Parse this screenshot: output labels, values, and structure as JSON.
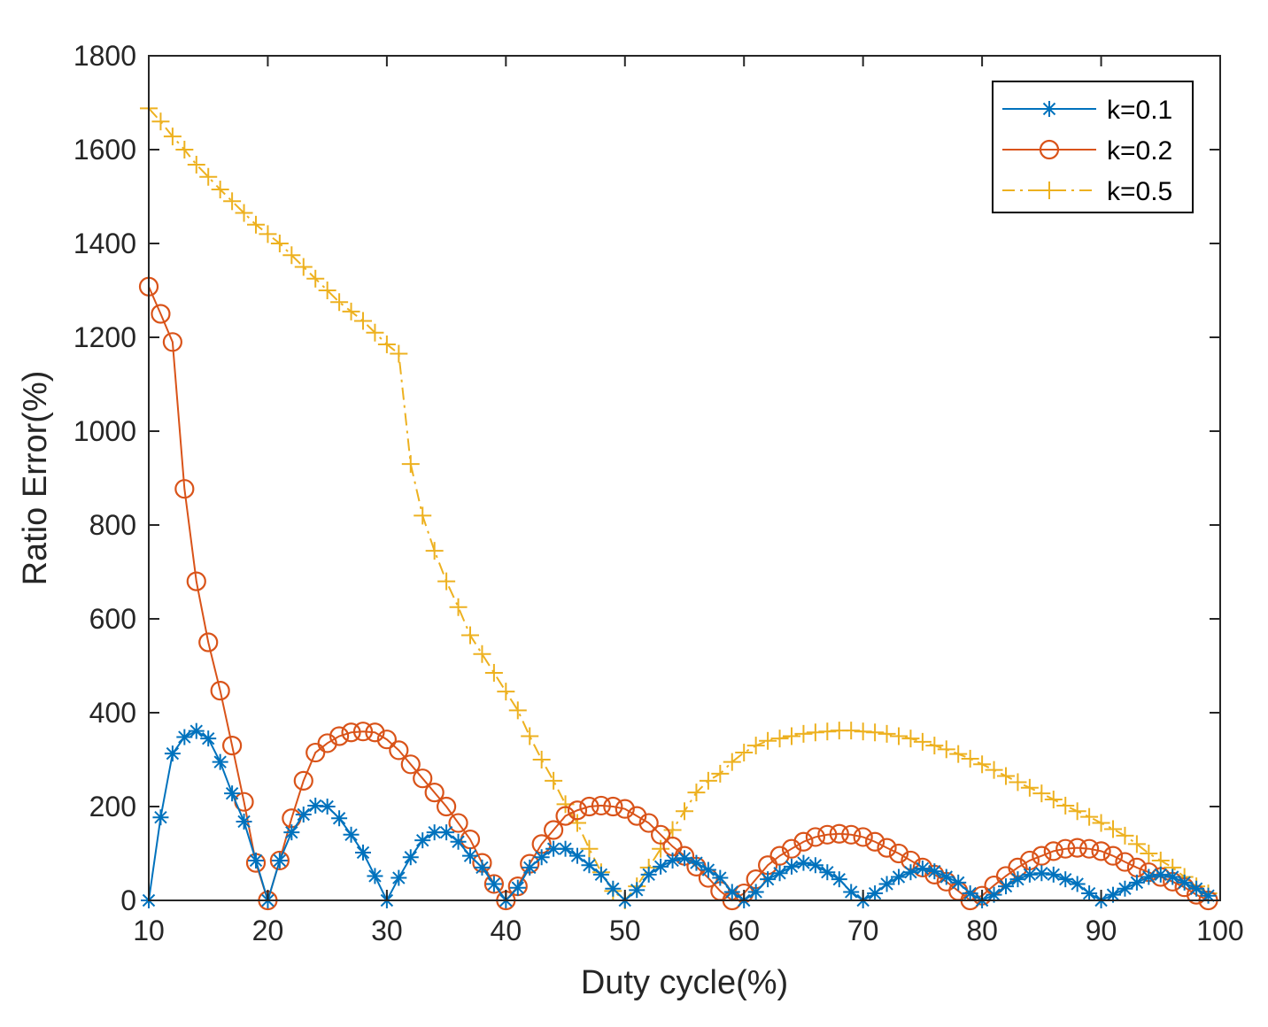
{
  "chart_data": {
    "type": "line",
    "title": "",
    "xlabel": "Duty cycle(%)",
    "ylabel": "Ratio Error(%)",
    "xlim": [
      10,
      100
    ],
    "ylim": [
      0,
      1800
    ],
    "xticks": [
      "10",
      "20",
      "30",
      "40",
      "50",
      "60",
      "70",
      "80",
      "90",
      "100"
    ],
    "yticks": [
      "0",
      "200",
      "400",
      "600",
      "800",
      "1000",
      "1200",
      "1400",
      "1600",
      "1800"
    ],
    "grid": false,
    "legend_position": "top-right",
    "x": [
      10,
      11,
      12,
      13,
      14,
      15,
      16,
      17,
      18,
      19,
      20,
      21,
      22,
      23,
      24,
      25,
      26,
      27,
      28,
      29,
      30,
      31,
      32,
      33,
      34,
      35,
      36,
      37,
      38,
      39,
      40,
      41,
      42,
      43,
      44,
      45,
      46,
      47,
      48,
      49,
      50,
      51,
      52,
      53,
      54,
      55,
      56,
      57,
      58,
      59,
      60,
      61,
      62,
      63,
      64,
      65,
      66,
      67,
      68,
      69,
      70,
      71,
      72,
      73,
      74,
      75,
      76,
      77,
      78,
      79,
      80,
      81,
      82,
      83,
      84,
      85,
      86,
      87,
      88,
      89,
      90,
      91,
      92,
      93,
      94,
      95,
      96,
      97,
      98,
      99
    ],
    "series": [
      {
        "name": "k=0.1",
        "color": "#0072BD",
        "marker": "asterisk",
        "line": "solid",
        "values": [
          0,
          177,
          313,
          348,
          361,
          345,
          295,
          228,
          168,
          85,
          0,
          85,
          145,
          183,
          202,
          200,
          175,
          140,
          102,
          52,
          0,
          48,
          92,
          128,
          145,
          145,
          125,
          95,
          70,
          35,
          0,
          27,
          70,
          92,
          110,
          110,
          95,
          75,
          55,
          25,
          0,
          22,
          55,
          72,
          85,
          90,
          80,
          65,
          48,
          18,
          0,
          18,
          45,
          58,
          72,
          80,
          75,
          60,
          45,
          18,
          0,
          15,
          35,
          50,
          60,
          68,
          62,
          50,
          38,
          15,
          0,
          12,
          30,
          45,
          55,
          58,
          55,
          45,
          35,
          15,
          0,
          12,
          25,
          38,
          50,
          55,
          50,
          38,
          25,
          10
        ]
      },
      {
        "name": "k=0.2",
        "color": "#D95319",
        "marker": "circle",
        "line": "solid",
        "values": [
          1308,
          1250,
          1190,
          877,
          680,
          550,
          447,
          330,
          210,
          80,
          0,
          85,
          175,
          255,
          315,
          335,
          350,
          358,
          360,
          358,
          343,
          320,
          290,
          260,
          230,
          200,
          165,
          130,
          80,
          35,
          0,
          30,
          78,
          120,
          150,
          180,
          192,
          200,
          202,
          200,
          195,
          180,
          165,
          140,
          115,
          95,
          72,
          48,
          20,
          0,
          15,
          45,
          75,
          95,
          110,
          125,
          135,
          140,
          142,
          140,
          135,
          125,
          112,
          100,
          85,
          70,
          55,
          40,
          20,
          0,
          10,
          32,
          52,
          70,
          85,
          95,
          105,
          110,
          112,
          110,
          105,
          95,
          82,
          70,
          60,
          50,
          40,
          28,
          12,
          0
        ]
      },
      {
        "name": "k=0.5",
        "color": "#EDB120",
        "marker": "plus",
        "line": "dashdot",
        "values": [
          1688,
          1660,
          1628,
          1600,
          1568,
          1542,
          1515,
          1490,
          1465,
          1440,
          1420,
          1400,
          1375,
          1350,
          1325,
          1300,
          1275,
          1255,
          1235,
          1210,
          1185,
          1165,
          930,
          820,
          745,
          680,
          625,
          565,
          525,
          485,
          445,
          405,
          350,
          300,
          255,
          205,
          165,
          110,
          60,
          20,
          0,
          30,
          70,
          110,
          150,
          190,
          230,
          255,
          270,
          295,
          315,
          330,
          340,
          345,
          350,
          355,
          358,
          360,
          362,
          362,
          360,
          358,
          355,
          350,
          345,
          338,
          330,
          322,
          312,
          302,
          290,
          278,
          265,
          252,
          240,
          228,
          215,
          202,
          190,
          178,
          165,
          152,
          138,
          120,
          100,
          85,
          70,
          50,
          30,
          15
        ]
      }
    ]
  }
}
